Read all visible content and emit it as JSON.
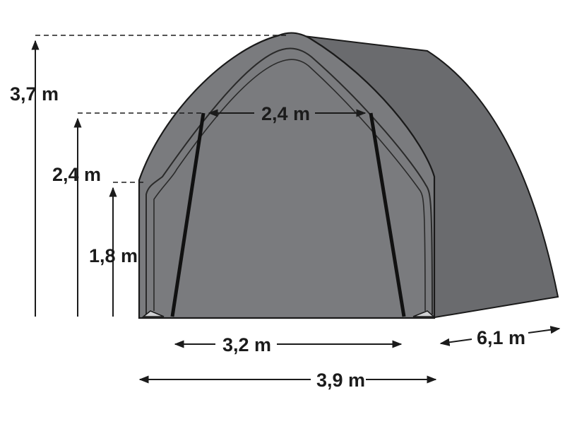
{
  "labels": {
    "total_height": "3,7 m",
    "door_height": "2,4 m",
    "side_height": "1,8 m",
    "door_top_width": "2,4 m",
    "door_bottom_width": "3,2 m",
    "total_width": "3,9 m",
    "length": "6,1 m"
  },
  "colors": {
    "cover": "#7a7b7e",
    "cover_shadow": "#6a6b6e",
    "outline": "#1a1a1a",
    "frame": "#2a2a2a",
    "dimension_line": "#1b1b1b",
    "background": "#ffffff"
  }
}
